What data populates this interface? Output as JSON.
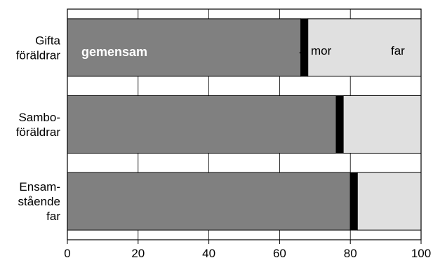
{
  "chart_data": {
    "type": "bar",
    "orientation": "horizontal",
    "stacked": true,
    "categories": [
      [
        "Gifta",
        "föräldrar"
      ],
      [
        "Sambo-",
        "föräldrar"
      ],
      [
        "Ensam-",
        "stående",
        "far"
      ]
    ],
    "series": [
      {
        "name": "gemensam",
        "color": "#808080",
        "values": [
          66,
          76,
          80
        ]
      },
      {
        "name": "mor",
        "color": "#000000",
        "values": [
          2,
          2,
          2
        ]
      },
      {
        "name": "far",
        "color": "#e0e0e0",
        "values": [
          32,
          22,
          18
        ]
      }
    ],
    "xlim": [
      0,
      100
    ],
    "xticks": [
      0,
      20,
      40,
      60,
      80,
      100
    ],
    "grid": "vertical",
    "annotations": {
      "inside_label": "gemensam",
      "arrow_label": "mor",
      "arrow_glyph": "←",
      "right_label": "far"
    },
    "title": "",
    "xlabel": "",
    "ylabel": ""
  }
}
